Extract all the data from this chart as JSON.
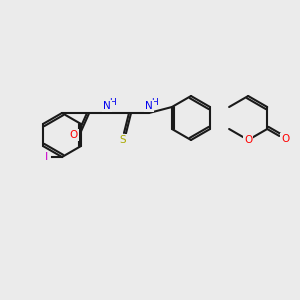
{
  "background_color": "#ebebeb",
  "bond_color": "#1a1a1a",
  "bond_width": 1.5,
  "atom_colors": {
    "I": "#cc00cc",
    "O": "#ff0000",
    "N": "#0000ee",
    "S": "#aaaa00",
    "C": "#1a1a1a"
  },
  "font_size_atom": 7.5,
  "font_size_label": 7.0
}
